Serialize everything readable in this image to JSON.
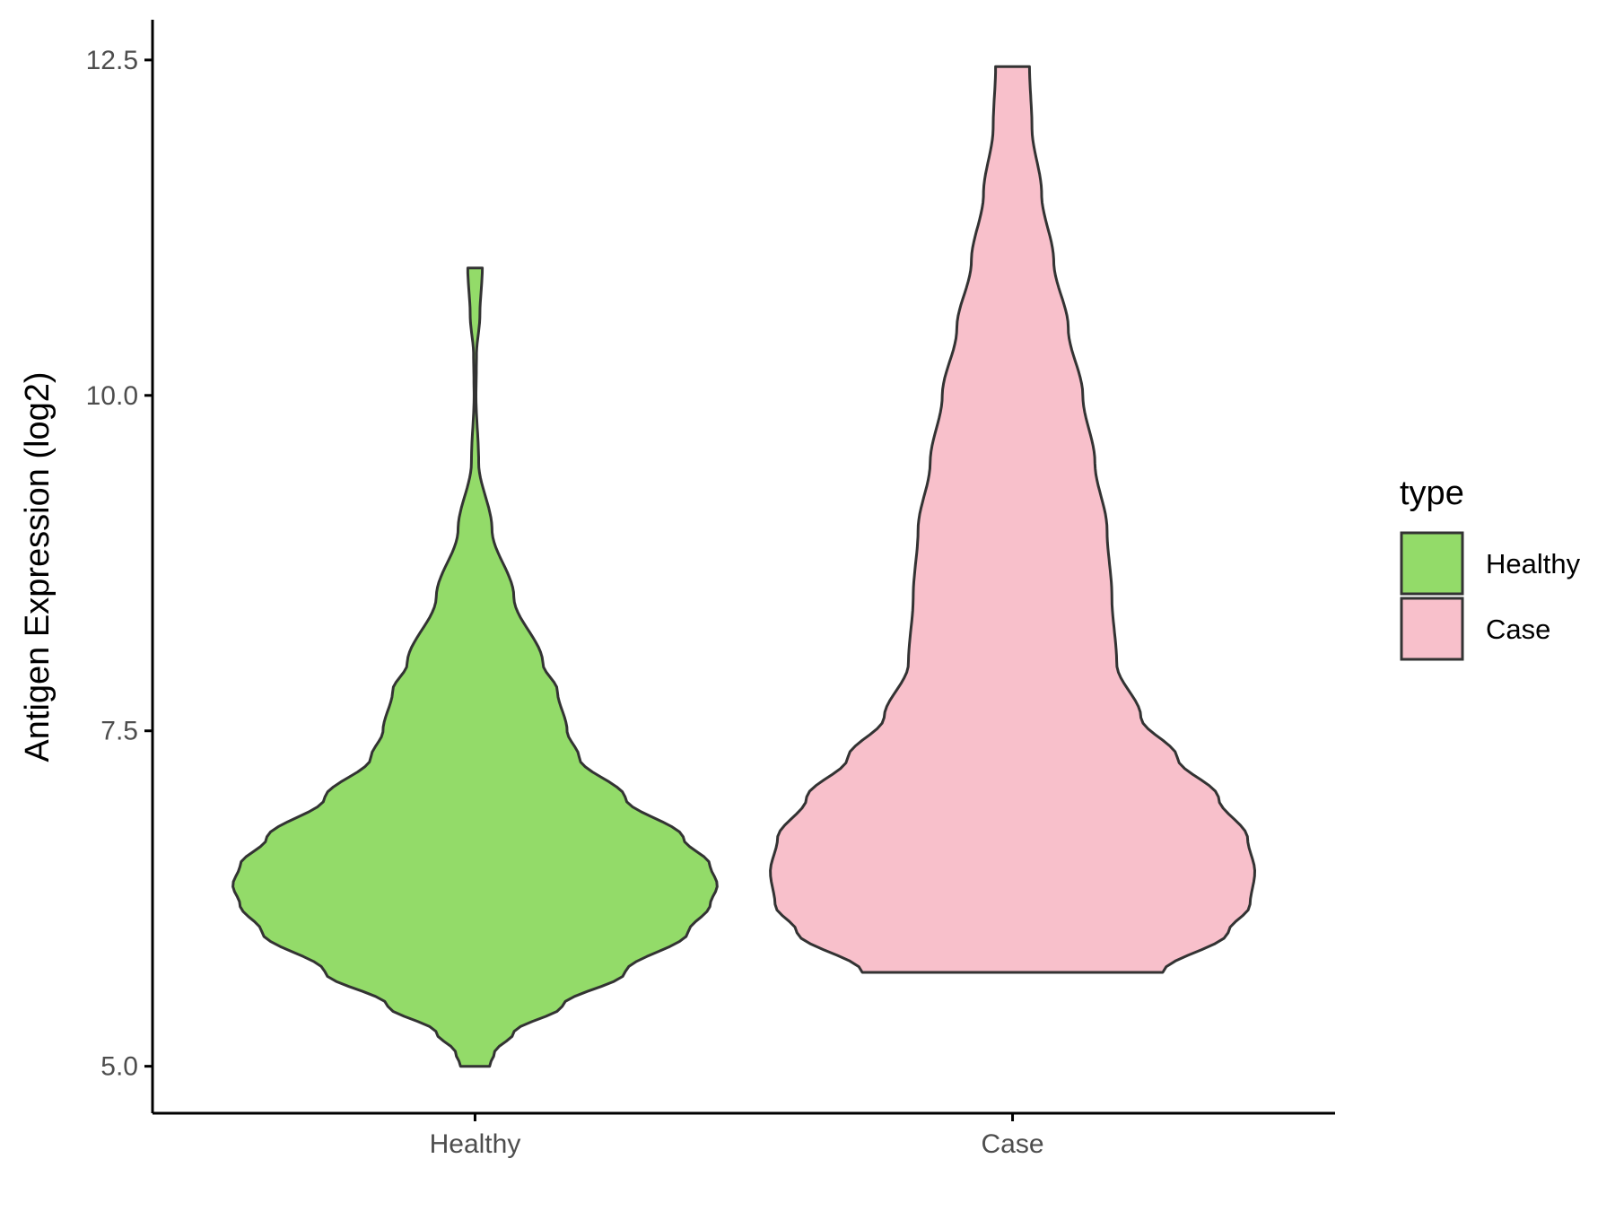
{
  "chart_data": {
    "type": "violin",
    "ylabel": "Antigen Expression (log2)",
    "xlabel": "",
    "categories": [
      "Healthy",
      "Case"
    ],
    "ylim": [
      4.65,
      12.8
    ],
    "yticks": [
      "5.0",
      "7.5",
      "10.0",
      "12.5"
    ],
    "ytick_values": [
      5.0,
      7.5,
      10.0,
      12.5
    ],
    "grid": false,
    "legend": {
      "title": "type",
      "position": "right",
      "entries": [
        {
          "label": "Healthy",
          "color": "#93DB69"
        },
        {
          "label": "Case",
          "color": "#F8C0CB"
        }
      ]
    },
    "series": [
      {
        "name": "Healthy",
        "color": "#93DB69",
        "min": 5.0,
        "max": 10.95,
        "profile": [
          [
            5.0,
            0.06
          ],
          [
            5.1,
            0.08
          ],
          [
            5.25,
            0.16
          ],
          [
            5.45,
            0.36
          ],
          [
            5.7,
            0.62
          ],
          [
            6.0,
            0.88
          ],
          [
            6.2,
            0.97
          ],
          [
            6.35,
            1.0
          ],
          [
            6.5,
            0.97
          ],
          [
            6.7,
            0.86
          ],
          [
            7.0,
            0.62
          ],
          [
            7.3,
            0.43
          ],
          [
            7.5,
            0.38
          ],
          [
            7.8,
            0.34
          ],
          [
            8.0,
            0.28
          ],
          [
            8.5,
            0.16
          ],
          [
            9.0,
            0.07
          ],
          [
            9.5,
            0.015
          ],
          [
            10.0,
            0.004
          ],
          [
            10.3,
            0.006
          ],
          [
            10.6,
            0.02
          ],
          [
            10.95,
            0.03
          ]
        ]
      },
      {
        "name": "Case",
        "color": "#F8C0CB",
        "min": 5.7,
        "max": 12.45,
        "profile": [
          [
            5.7,
            0.62
          ],
          [
            6.0,
            0.89
          ],
          [
            6.2,
            0.98
          ],
          [
            6.45,
            1.0
          ],
          [
            6.7,
            0.97
          ],
          [
            7.0,
            0.85
          ],
          [
            7.3,
            0.68
          ],
          [
            7.6,
            0.53
          ],
          [
            8.0,
            0.43
          ],
          [
            8.5,
            0.41
          ],
          [
            9.0,
            0.39
          ],
          [
            9.5,
            0.34
          ],
          [
            10.0,
            0.29
          ],
          [
            10.5,
            0.23
          ],
          [
            11.0,
            0.17
          ],
          [
            11.5,
            0.12
          ],
          [
            12.0,
            0.08
          ],
          [
            12.45,
            0.07
          ]
        ]
      }
    ]
  }
}
